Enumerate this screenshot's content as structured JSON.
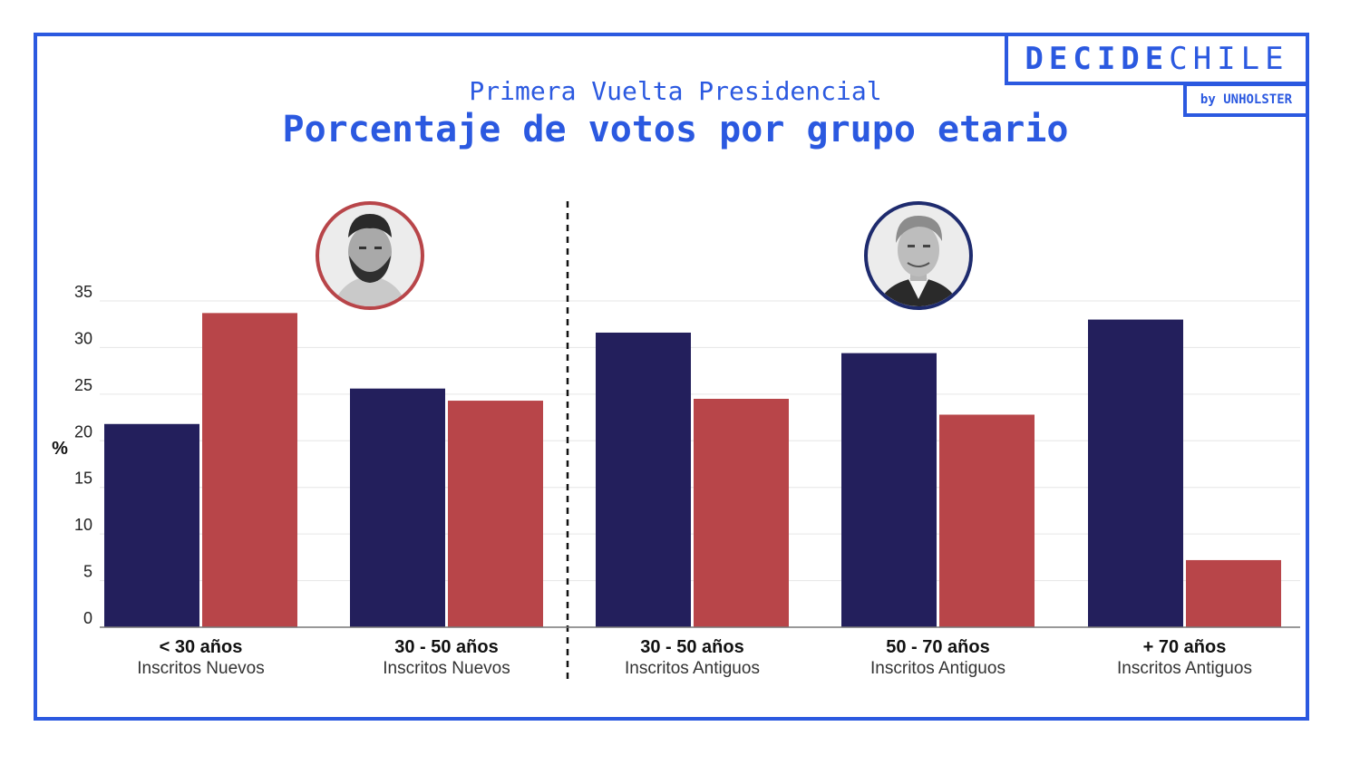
{
  "logo": {
    "brand_bold": "DECIDE",
    "brand_light": "CHILE",
    "sub": "by UNHOLSTER"
  },
  "header": {
    "subtitle": "Primera Vuelta Presidencial",
    "title": "Porcentaje de votos por grupo etario"
  },
  "colors": {
    "accent": "#2b59e0",
    "kast": "#231f5c",
    "boric": "#b84549"
  },
  "candidates": [
    {
      "name": "Boric",
      "icon": "candidate-photo-boric",
      "ring_color": "#b84549"
    },
    {
      "name": "Kast",
      "icon": "candidate-photo-kast",
      "ring_color": "#1e2b6e"
    }
  ],
  "chart_data": {
    "type": "bar",
    "ylabel": "%",
    "ylim": [
      0,
      35
    ],
    "yticks": [
      0,
      5,
      10,
      15,
      20,
      25,
      30,
      35
    ],
    "grid": true,
    "categories": [
      {
        "main": "< 30 años",
        "sub": "Inscritos Nuevos"
      },
      {
        "main": "30 - 50 años",
        "sub": "Inscritos Nuevos"
      },
      {
        "main": "30 - 50 años",
        "sub": "Inscritos Antiguos"
      },
      {
        "main": "50 - 70 años",
        "sub": "Inscritos Antiguos"
      },
      {
        "main": "+ 70 años",
        "sub": "Inscritos Antiguos"
      }
    ],
    "series": [
      {
        "name": "Kast",
        "color": "#231f5c",
        "values": [
          21.8,
          25.6,
          31.6,
          29.4,
          33
        ]
      },
      {
        "name": "Boric",
        "color": "#b84549",
        "values": [
          33.7,
          24.3,
          24.5,
          22.8,
          7.2
        ]
      }
    ]
  }
}
